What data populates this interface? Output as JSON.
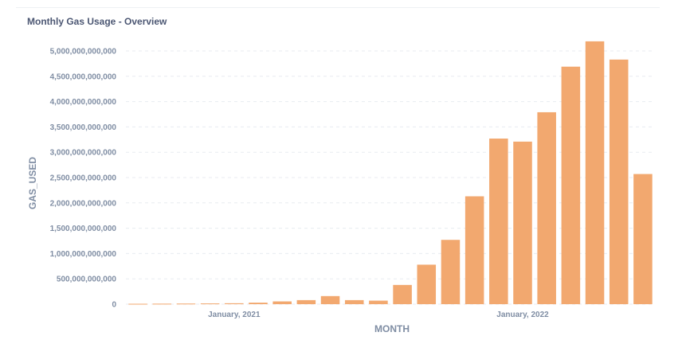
{
  "card": {
    "title": "Monthly Gas Usage - Overview"
  },
  "chart_data": {
    "type": "bar",
    "xlabel": "MONTH",
    "ylabel": "GAS_USED",
    "ylim": [
      0,
      5000000000000
    ],
    "y_ticks": [
      "0",
      "500,000,000,000",
      "1,000,000,000,000",
      "1,500,000,000,000",
      "2,000,000,000,000",
      "2,500,000,000,000",
      "3,000,000,000,000",
      "3,500,000,000,000",
      "4,000,000,000,000",
      "4,500,000,000,000",
      "5,000,000,000,000"
    ],
    "y_tick_values": [
      0,
      500000000000,
      1000000000000,
      1500000000000,
      2000000000000,
      2500000000000,
      3000000000000,
      3500000000000,
      4000000000000,
      4500000000000,
      5000000000000
    ],
    "x_tick_labels": [
      {
        "text": "January, 2021",
        "category": "2021-01"
      },
      {
        "text": "January, 2022",
        "category": "2022-01"
      }
    ],
    "categories": [
      "2020-09",
      "2020-10",
      "2020-11",
      "2020-12",
      "2021-01",
      "2021-02",
      "2021-03",
      "2021-04",
      "2021-05",
      "2021-06",
      "2021-07",
      "2021-08",
      "2021-09",
      "2021-10",
      "2021-11",
      "2021-12",
      "2022-01",
      "2022-02",
      "2022-03",
      "2022-04",
      "2022-05",
      "2022-06"
    ],
    "values": [
      8000000000,
      10000000000,
      12000000000,
      15000000000,
      18000000000,
      30000000000,
      55000000000,
      80000000000,
      160000000000,
      80000000000,
      70000000000,
      380000000000,
      780000000000,
      1270000000000,
      2130000000000,
      3270000000000,
      3210000000000,
      3790000000000,
      4690000000000,
      5190000000000,
      4830000000000,
      2570000000000
    ],
    "grid": true,
    "colors": {
      "bar": "#f2a86f",
      "grid": "#e8ebf0",
      "text": "#7f8da3",
      "title": "#4c5773"
    }
  }
}
